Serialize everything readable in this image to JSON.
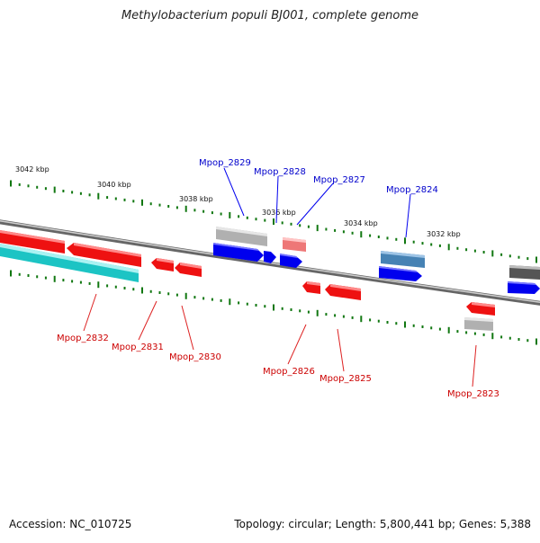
{
  "title": "Methylobacterium populi BJ001, complete genome",
  "accession": "Accession: NC_010725",
  "topology": "Topology: circular; Length: 5,800,441 bp; Genes: 5,388",
  "colors": {
    "forward": "#0000ee",
    "reverse": "#ee0000",
    "teal": "#20c8c8",
    "gray": "#b4b4b4",
    "pink": "#ee7777",
    "steel": "#4682b4",
    "dark": "#555555",
    "tick": "#117711",
    "backbone": "#777777"
  },
  "scale_labels": [
    "3042 kbp",
    "3040 kbp",
    "3038 kbp",
    "3036 kbp",
    "3034 kbp",
    "3032 kbp"
  ],
  "gene_labels_top": [
    "Mpop_2829",
    "Mpop_2828",
    "Mpop_2827",
    "Mpop_2824"
  ],
  "gene_labels_bottom": [
    "Mpop_2832",
    "Mpop_2831",
    "Mpop_2830",
    "Mpop_2826",
    "Mpop_2825",
    "Mpop_2823"
  ]
}
